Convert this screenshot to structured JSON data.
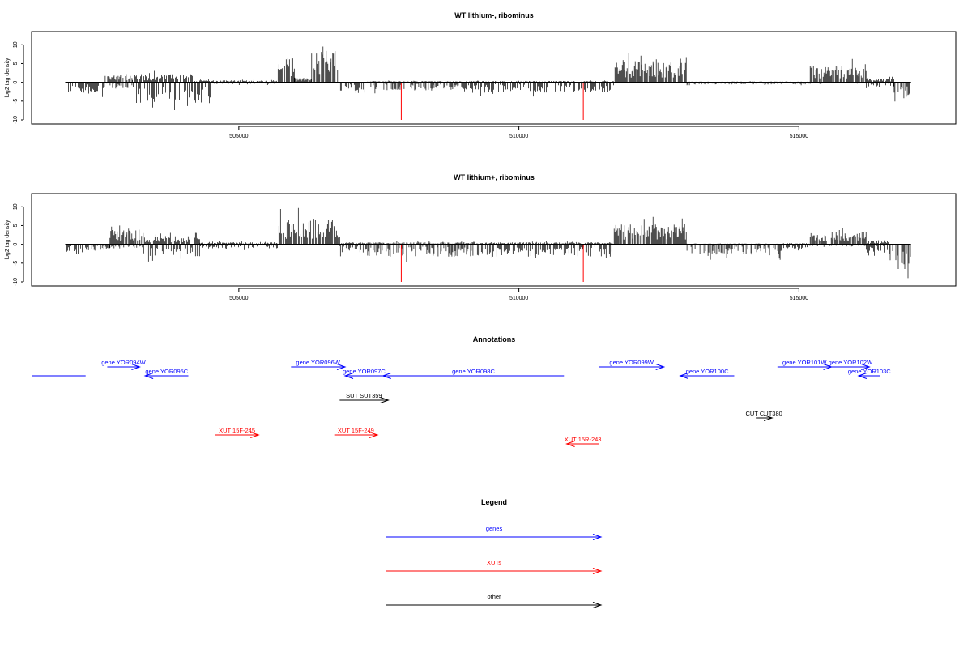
{
  "chart_data": [
    {
      "type": "bar",
      "title": "WT lithium-, ribominus",
      "ylabel": "log2 tag density",
      "xlim": [
        501300,
        517800
      ],
      "ylim": [
        -10,
        12
      ],
      "x_ticks": [
        505000,
        510000,
        515000
      ],
      "y_ticks": [
        -10,
        -5,
        0,
        5,
        10
      ],
      "track_range": [
        501900,
        517000
      ],
      "profile": [
        {
          "from": 501900,
          "to": 502600,
          "pos": 0,
          "neg": 2.5
        },
        {
          "from": 502600,
          "to": 503100,
          "pos": 2,
          "neg": 1.5
        },
        {
          "from": 503100,
          "to": 504200,
          "pos": 2,
          "neg": 5
        },
        {
          "from": 504200,
          "to": 504500,
          "pos": 0.5,
          "neg": 6
        },
        {
          "from": 504500,
          "to": 505700,
          "pos": 0.5,
          "neg": 0.5
        },
        {
          "from": 505700,
          "to": 506000,
          "pos": 6,
          "neg": 0
        },
        {
          "from": 506000,
          "to": 506300,
          "pos": 1,
          "neg": 0
        },
        {
          "from": 506300,
          "to": 506800,
          "pos": 8,
          "neg": 0
        },
        {
          "from": 506800,
          "to": 507300,
          "pos": 0,
          "neg": 2
        },
        {
          "from": 507300,
          "to": 509000,
          "pos": 0.3,
          "neg": 2
        },
        {
          "from": 509000,
          "to": 511700,
          "pos": 0.3,
          "neg": 2.5
        },
        {
          "from": 511700,
          "to": 513000,
          "pos": 5,
          "neg": 0
        },
        {
          "from": 513000,
          "to": 515200,
          "pos": 0.2,
          "neg": 0.5
        },
        {
          "from": 515200,
          "to": 516200,
          "pos": 4,
          "neg": 0.3
        },
        {
          "from": 516200,
          "to": 516700,
          "pos": 1,
          "neg": 1
        },
        {
          "from": 516700,
          "to": 517000,
          "pos": 0,
          "neg": 5
        }
      ],
      "highlight_spikes": [
        {
          "x": 507900,
          "y": -10
        },
        {
          "x": 511150,
          "y": -10
        }
      ]
    },
    {
      "type": "bar",
      "title": "WT lithium+, ribominus",
      "ylabel": "log2 tag density",
      "xlim": [
        501300,
        517800
      ],
      "ylim": [
        -10,
        12
      ],
      "x_ticks": [
        505000,
        510000,
        515000
      ],
      "y_ticks": [
        -10,
        -5,
        0,
        5,
        10
      ],
      "track_range": [
        501900,
        517000
      ],
      "profile": [
        {
          "from": 501900,
          "to": 502300,
          "pos": 0,
          "neg": 2.5
        },
        {
          "from": 502300,
          "to": 502700,
          "pos": 0,
          "neg": 1.5
        },
        {
          "from": 502700,
          "to": 503300,
          "pos": 3.5,
          "neg": 1
        },
        {
          "from": 503300,
          "to": 504300,
          "pos": 2,
          "neg": 3
        },
        {
          "from": 504300,
          "to": 505700,
          "pos": 0.5,
          "neg": 1
        },
        {
          "from": 505700,
          "to": 506800,
          "pos": 6,
          "neg": 0
        },
        {
          "from": 506800,
          "to": 507300,
          "pos": 0.5,
          "neg": 2
        },
        {
          "from": 507300,
          "to": 509200,
          "pos": 0.5,
          "neg": 3
        },
        {
          "from": 509200,
          "to": 511700,
          "pos": 0.5,
          "neg": 3
        },
        {
          "from": 511700,
          "to": 513000,
          "pos": 5,
          "neg": 0
        },
        {
          "from": 513000,
          "to": 514700,
          "pos": 0.2,
          "neg": 2.5
        },
        {
          "from": 514700,
          "to": 515200,
          "pos": 0.3,
          "neg": 1
        },
        {
          "from": 515200,
          "to": 516200,
          "pos": 3,
          "neg": 0.5
        },
        {
          "from": 516200,
          "to": 516600,
          "pos": 1,
          "neg": 2
        },
        {
          "from": 516600,
          "to": 517000,
          "pos": 0,
          "neg": 6
        }
      ],
      "highlight_spikes": [
        {
          "x": 507900,
          "y": -10
        },
        {
          "x": 511150,
          "y": -10
        }
      ]
    }
  ],
  "annotations": {
    "title": "Annotations",
    "features": [
      {
        "label": "",
        "start": 501300,
        "end": 502300,
        "strand": "none",
        "category": "gene",
        "row": 0
      },
      {
        "label": "gene YOR094W",
        "start": 502700,
        "end": 503300,
        "strand": "+",
        "category": "gene",
        "row": 1
      },
      {
        "label": "gene YOR095C",
        "start": 503400,
        "end": 504200,
        "strand": "-",
        "category": "gene",
        "row": 0
      },
      {
        "label": "gene YOR096W",
        "start": 506100,
        "end": 507100,
        "strand": "+",
        "category": "gene",
        "row": 1
      },
      {
        "label": "gene YOR097C",
        "start": 507100,
        "end": 507800,
        "strand": "-",
        "category": "gene",
        "row": 0
      },
      {
        "label": "gene YOR098C",
        "start": 507800,
        "end": 511150,
        "strand": "-",
        "category": "gene",
        "row": 0
      },
      {
        "label": "gene YOR099W",
        "start": 511800,
        "end": 513000,
        "strand": "+",
        "category": "gene",
        "row": 1
      },
      {
        "label": "gene YOR100C",
        "start": 513300,
        "end": 514300,
        "strand": "-",
        "category": "gene",
        "row": 0
      },
      {
        "label": "gene YOR101W",
        "start": 515100,
        "end": 516100,
        "strand": "+",
        "category": "gene",
        "row": 1
      },
      {
        "label": "gene YOR102W",
        "start": 516100,
        "end": 516800,
        "strand": "+",
        "category": "gene",
        "row": 1
      },
      {
        "label": "gene YOR103C",
        "start": 516600,
        "end": 517000,
        "strand": "-",
        "category": "gene",
        "row": 0
      },
      {
        "label": "SUT SUT359",
        "start": 507000,
        "end": 507900,
        "strand": "+",
        "category": "other",
        "row": 2
      },
      {
        "label": "CUT CUT380",
        "start": 514700,
        "end": 515000,
        "strand": "+",
        "category": "other",
        "row": 3
      },
      {
        "label": "XUT 15F-245",
        "start": 504700,
        "end": 505500,
        "strand": "+",
        "category": "xut",
        "row": 4
      },
      {
        "label": "XUT 15F-249",
        "start": 506900,
        "end": 507700,
        "strand": "+",
        "category": "xut",
        "row": 4
      },
      {
        "label": "XUT 15R-243",
        "start": 511200,
        "end": 511800,
        "strand": "-",
        "category": "xut",
        "row": 5
      }
    ]
  },
  "legend": {
    "title": "Legend",
    "items": [
      {
        "label": "genes",
        "color": "#0000ff"
      },
      {
        "label": "XUTs",
        "color": "#ff0000"
      },
      {
        "label": "other",
        "color": "#000000"
      }
    ]
  },
  "colors": {
    "gene": "#0000ff",
    "xut": "#ff0000",
    "other": "#000000",
    "signal": "#000000",
    "highlight": "#ff0000"
  }
}
